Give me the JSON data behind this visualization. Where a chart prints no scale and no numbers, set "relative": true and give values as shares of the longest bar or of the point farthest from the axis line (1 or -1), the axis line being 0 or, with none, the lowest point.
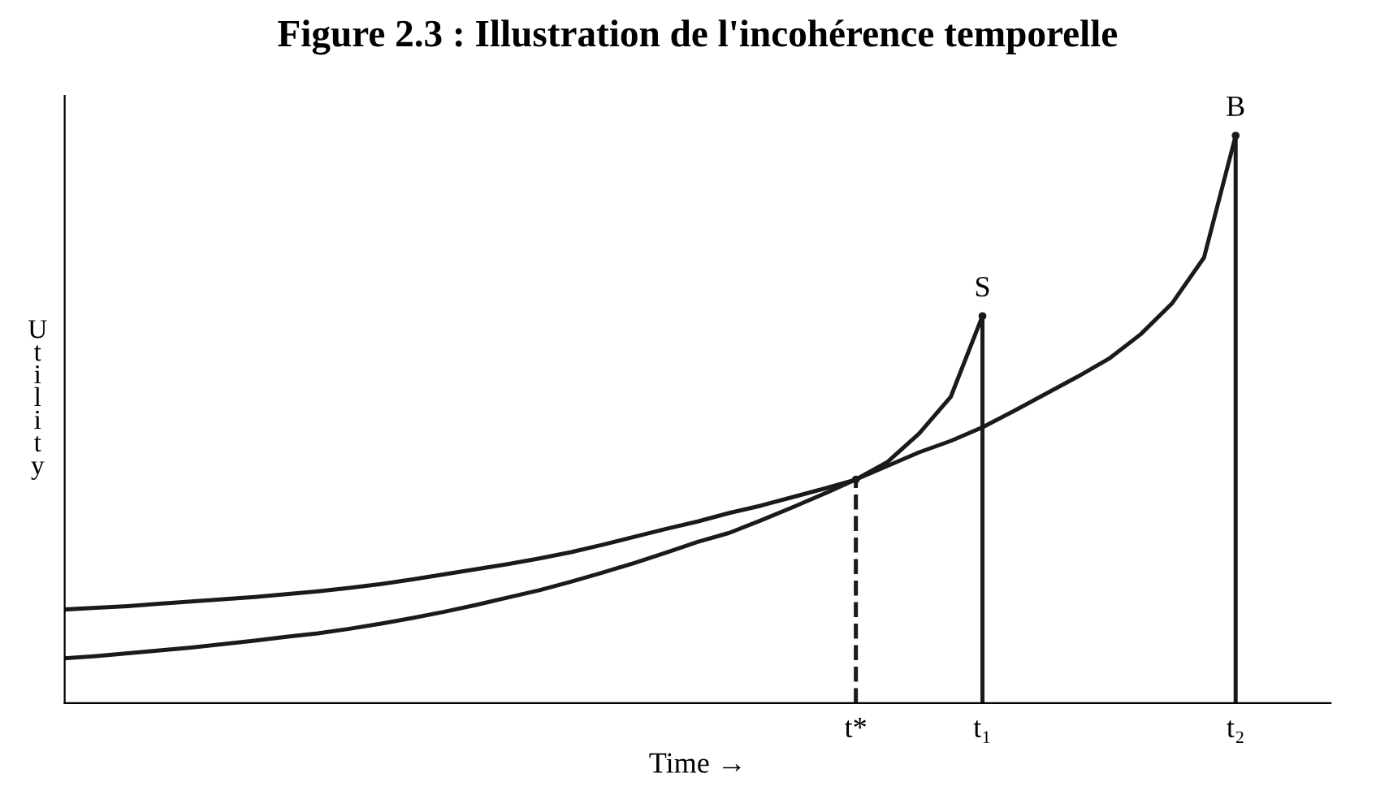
{
  "chart_data": {
    "type": "line",
    "title": "Figure 2.3 : Illustration de l'incohérence temporelle",
    "xlabel": "Time →",
    "ylabel": "Utility",
    "relative": true,
    "tick_labels": "x",
    "categories": [
      null,
      null,
      null,
      null,
      null,
      null,
      null,
      null,
      null,
      null,
      null,
      null,
      null,
      null,
      null,
      null,
      null,
      null,
      null,
      null,
      null,
      null,
      null,
      null,
      null,
      "t*",
      null,
      null,
      null,
      "t₁",
      null,
      null,
      null,
      null,
      null,
      null,
      null,
      "t₂",
      null,
      null,
      null
    ],
    "series": [
      {
        "color": "#1a1a1a",
        "values": [
          0.165,
          0.168,
          0.171,
          0.175,
          0.179,
          0.183,
          0.187,
          0.192,
          0.197,
          0.203,
          0.21,
          0.218,
          0.227,
          0.236,
          0.245,
          0.255,
          0.266,
          0.279,
          0.293,
          0.307,
          0.32,
          0.335,
          0.348,
          0.363,
          0.378,
          0.394,
          0.418,
          0.442,
          0.462,
          0.486,
          0.515,
          0.545,
          0.575,
          0.607,
          0.65,
          0.705,
          0.785,
          1.0,
          null,
          null,
          null
        ]
      },
      {
        "color": "#1a1a1a",
        "values": [
          0.079,
          0.083,
          0.088,
          0.093,
          0.098,
          0.104,
          0.11,
          0.117,
          0.123,
          0.131,
          0.14,
          0.15,
          0.161,
          0.173,
          0.186,
          0.199,
          0.214,
          0.23,
          0.247,
          0.265,
          0.284,
          0.3,
          0.322,
          0.345,
          0.369,
          0.394,
          0.425,
          0.475,
          0.54,
          0.682,
          null,
          null,
          null,
          null,
          null,
          null,
          null,
          null,
          null,
          null,
          null
        ]
      },
      {
        "type": "lollipop",
        "color": "#1a1a1a",
        "line_style": "dashed",
        "values": [
          null,
          null,
          null,
          null,
          null,
          null,
          null,
          null,
          null,
          null,
          null,
          null,
          null,
          null,
          null,
          null,
          null,
          null,
          null,
          null,
          null,
          null,
          null,
          null,
          null,
          0.394,
          null,
          null,
          null,
          null,
          null,
          null,
          null,
          null,
          null,
          null,
          null,
          null,
          null,
          null,
          null
        ]
      },
      {
        "type": "lollipop",
        "name": "S",
        "color": "#1a1a1a",
        "values": [
          null,
          null,
          null,
          null,
          null,
          null,
          null,
          null,
          null,
          null,
          null,
          null,
          null,
          null,
          null,
          null,
          null,
          null,
          null,
          null,
          null,
          null,
          null,
          null,
          null,
          null,
          null,
          null,
          null,
          0.682,
          null,
          null,
          null,
          null,
          null,
          null,
          null,
          null,
          null,
          null,
          null
        ]
      },
      {
        "type": "lollipop",
        "name": "B",
        "color": "#1a1a1a",
        "values": [
          null,
          null,
          null,
          null,
          null,
          null,
          null,
          null,
          null,
          null,
          null,
          null,
          null,
          null,
          null,
          null,
          null,
          null,
          null,
          null,
          null,
          null,
          null,
          null,
          null,
          null,
          null,
          null,
          null,
          null,
          null,
          null,
          null,
          null,
          null,
          null,
          null,
          1.0,
          null,
          null,
          null
        ]
      }
    ]
  }
}
